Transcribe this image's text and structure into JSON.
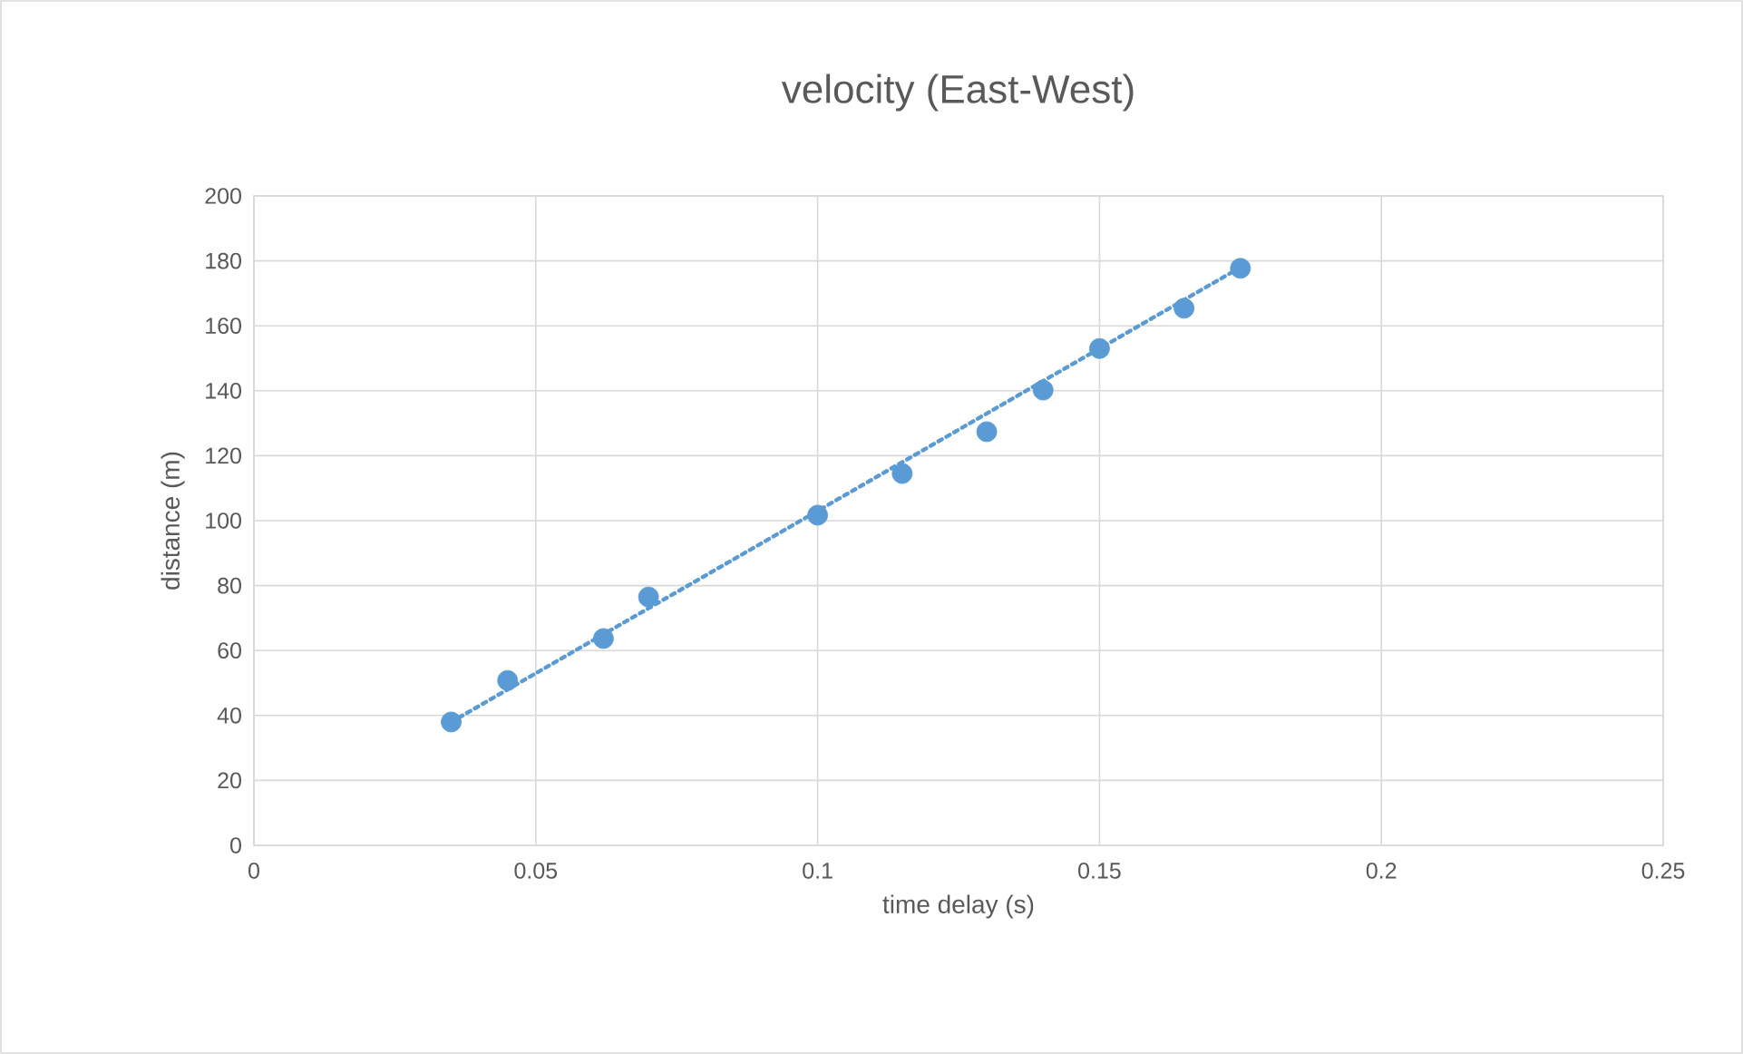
{
  "chart_data": {
    "type": "scatter",
    "title": "velocity (East-West)",
    "xlabel": "time delay (s)",
    "ylabel": "distance (m)",
    "xlim": [
      0,
      0.25
    ],
    "xticks": [
      0,
      0.05,
      0.1,
      0.15,
      0.2,
      0.25
    ],
    "ylim": [
      0,
      200
    ],
    "yticks": [
      0,
      20,
      40,
      60,
      80,
      100,
      120,
      140,
      160,
      180,
      200
    ],
    "grid": true,
    "series": [
      {
        "color": "#5b9bd5",
        "marker": "circle",
        "x": [
          0.035,
          0.045,
          0.062,
          0.07,
          0.1,
          0.115,
          0.13,
          0.14,
          0.15,
          0.165,
          0.175
        ],
        "values": [
          38,
          50.8,
          63.7,
          76.5,
          101.7,
          114.5,
          127.4,
          140.2,
          153,
          165.4,
          177.7
        ]
      },
      {
        "type": "line",
        "color": "#5b9bd5",
        "marker": "none",
        "line_style": "dotted",
        "x": [
          0.035,
          0.175
        ],
        "values": [
          38,
          178
        ]
      }
    ]
  }
}
